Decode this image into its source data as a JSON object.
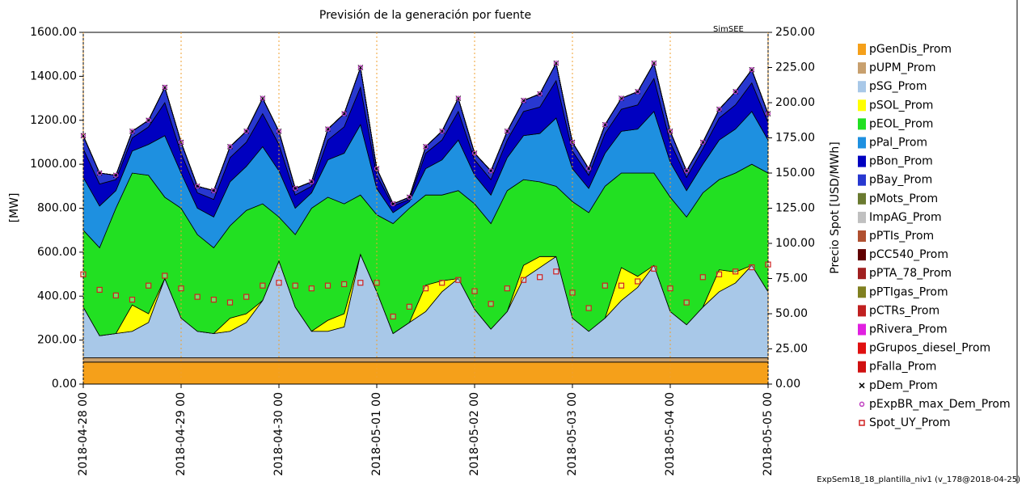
{
  "chart_data": {
    "type": "stacked-area",
    "title": "Previsión de la generación por fuente",
    "ylabel": "[MW]",
    "y2label": "Precio Spot [USD/MWh]",
    "logo": "SimSEE",
    "footnote": "ExpSem18_18_plantilla_niv1 (v_178@2018-04-25)",
    "grid": "x",
    "xlim": [
      0,
      168
    ],
    "ylim": [
      0,
      1600
    ],
    "y2lim": [
      0,
      250
    ],
    "x": [
      0,
      4,
      8,
      12,
      16,
      20,
      24,
      28,
      32,
      36,
      40,
      44,
      48,
      52,
      56,
      60,
      64,
      68,
      72,
      76,
      80,
      84,
      88,
      92,
      96,
      100,
      104,
      108,
      112,
      116,
      120,
      124,
      128,
      132,
      136,
      140,
      144,
      148,
      152,
      156,
      160,
      164,
      168
    ],
    "xticks": [
      {
        "value": 0,
        "label": "2018-04-28 00"
      },
      {
        "value": 24,
        "label": "2018-04-29 00"
      },
      {
        "value": 48,
        "label": "2018-04-30 00"
      },
      {
        "value": 72,
        "label": "2018-05-01 00"
      },
      {
        "value": 96,
        "label": "2018-05-02 00"
      },
      {
        "value": 120,
        "label": "2018-05-03 00"
      },
      {
        "value": 144,
        "label": "2018-05-04 00"
      },
      {
        "value": 168,
        "label": "2018-05-05 00"
      }
    ],
    "yticks": [
      {
        "value": 0,
        "label": "0.00"
      },
      {
        "value": 200,
        "label": "200.00"
      },
      {
        "value": 400,
        "label": "400.00"
      },
      {
        "value": 600,
        "label": "600.00"
      },
      {
        "value": 800,
        "label": "800.00"
      },
      {
        "value": 1000,
        "label": "1000.00"
      },
      {
        "value": 1200,
        "label": "1200.00"
      },
      {
        "value": 1400,
        "label": "1400.00"
      },
      {
        "value": 1600,
        "label": "1600.00"
      }
    ],
    "y2ticks": [
      {
        "value": 0,
        "label": "0.00"
      },
      {
        "value": 25,
        "label": "25.00"
      },
      {
        "value": 50,
        "label": "50.00"
      },
      {
        "value": 75,
        "label": "75.00"
      },
      {
        "value": 100,
        "label": "100.00"
      },
      {
        "value": 125,
        "label": "125.00"
      },
      {
        "value": 150,
        "label": "150.00"
      },
      {
        "value": 175,
        "label": "175.00"
      },
      {
        "value": 200,
        "label": "200.00"
      },
      {
        "value": 225,
        "label": "225.00"
      },
      {
        "value": 250,
        "label": "250.00"
      }
    ],
    "series": [
      {
        "name": "pGenDis_Prom",
        "color": "#f5a01a",
        "mark": "area",
        "values": [
          100,
          100,
          100,
          100,
          100,
          100,
          100,
          100,
          100,
          100,
          100,
          100,
          100,
          100,
          100,
          100,
          100,
          100,
          100,
          100,
          100,
          100,
          100,
          100,
          100,
          100,
          100,
          100,
          100,
          100,
          100,
          100,
          100,
          100,
          100,
          100,
          100,
          100,
          100,
          100,
          100,
          100,
          100
        ]
      },
      {
        "name": "pUPM_Prom",
        "color": "#c8a06e",
        "mark": "area",
        "values": [
          20,
          20,
          20,
          20,
          20,
          20,
          20,
          20,
          20,
          20,
          20,
          20,
          20,
          20,
          20,
          20,
          20,
          20,
          20,
          20,
          20,
          20,
          20,
          20,
          20,
          20,
          20,
          20,
          20,
          20,
          20,
          20,
          20,
          20,
          20,
          20,
          20,
          20,
          20,
          20,
          20,
          20,
          20
        ]
      },
      {
        "name": "pSG_Prom",
        "color": "#a8c8e8",
        "mark": "area",
        "values": [
          230,
          100,
          110,
          120,
          160,
          360,
          180,
          120,
          110,
          120,
          160,
          260,
          440,
          230,
          120,
          120,
          140,
          470,
          300,
          110,
          160,
          210,
          300,
          360,
          220,
          130,
          210,
          360,
          410,
          460,
          180,
          120,
          180,
          260,
          320,
          420,
          210,
          150,
          230,
          300,
          340,
          420,
          300
        ]
      },
      {
        "name": "pSOL_Prom",
        "color": "#ffff00",
        "mark": "area",
        "values": [
          0,
          0,
          0,
          120,
          40,
          0,
          0,
          0,
          0,
          60,
          40,
          0,
          0,
          0,
          0,
          50,
          60,
          0,
          0,
          0,
          0,
          120,
          50,
          0,
          0,
          0,
          0,
          60,
          50,
          0,
          0,
          0,
          0,
          150,
          50,
          0,
          0,
          0,
          0,
          100,
          50,
          0,
          0
        ]
      },
      {
        "name": "pEOL_Prom",
        "color": "#22e022",
        "mark": "area",
        "values": [
          350,
          400,
          570,
          600,
          630,
          370,
          500,
          440,
          390,
          420,
          470,
          440,
          200,
          330,
          560,
          560,
          500,
          270,
          350,
          500,
          520,
          410,
          390,
          400,
          480,
          480,
          550,
          390,
          340,
          320,
          530,
          540,
          600,
          430,
          470,
          420,
          520,
          490,
          520,
          410,
          450,
          460,
          540
        ]
      },
      {
        "name": "pPal_Prom",
        "color": "#1e90e0",
        "mark": "area",
        "values": [
          240,
          190,
          80,
          100,
          140,
          280,
          160,
          120,
          140,
          200,
          200,
          260,
          210,
          120,
          70,
          170,
          230,
          320,
          120,
          50,
          30,
          120,
          160,
          230,
          130,
          130,
          150,
          200,
          220,
          310,
          150,
          110,
          150,
          190,
          200,
          280,
          160,
          120,
          130,
          180,
          200,
          240,
          150
        ]
      },
      {
        "name": "pBon_Prom",
        "color": "#0000c0",
        "mark": "area",
        "values": [
          130,
          100,
          50,
          60,
          80,
          150,
          90,
          70,
          80,
          110,
          110,
          150,
          120,
          60,
          30,
          90,
          120,
          170,
          60,
          30,
          10,
          70,
          90,
          130,
          70,
          70,
          80,
          110,
          120,
          170,
          80,
          60,
          90,
          100,
          110,
          150,
          90,
          60,
          70,
          100,
          110,
          130,
          80
        ]
      },
      {
        "name": "pBay_Prom",
        "color": "#2838d0",
        "mark": "area",
        "values": [
          60,
          50,
          20,
          30,
          30,
          70,
          50,
          30,
          40,
          50,
          50,
          70,
          60,
          30,
          20,
          50,
          60,
          90,
          30,
          10,
          10,
          30,
          40,
          60,
          30,
          40,
          40,
          50,
          60,
          80,
          40,
          30,
          40,
          50,
          60,
          70,
          50,
          30,
          30,
          40,
          60,
          60,
          40
        ]
      },
      {
        "name": "pMots_Prom",
        "color": "#6a7a30",
        "mark": "area",
        "values": [
          0,
          0,
          0,
          0,
          0,
          0,
          0,
          0,
          0,
          0,
          0,
          0,
          0,
          0,
          0,
          0,
          0,
          0,
          0,
          0,
          0,
          0,
          0,
          0,
          0,
          0,
          0,
          0,
          0,
          0,
          0,
          0,
          0,
          0,
          0,
          0,
          0,
          0,
          0,
          0,
          0,
          0,
          0
        ]
      },
      {
        "name": "ImpAG_Prom",
        "color": "#c0c0c0",
        "mark": "area",
        "values": [
          0,
          0,
          0,
          0,
          0,
          0,
          0,
          0,
          0,
          0,
          0,
          0,
          0,
          0,
          0,
          0,
          0,
          0,
          0,
          0,
          0,
          0,
          0,
          0,
          0,
          0,
          0,
          0,
          0,
          0,
          0,
          0,
          0,
          0,
          0,
          0,
          0,
          0,
          0,
          0,
          0,
          0,
          0
        ]
      },
      {
        "name": "pPTIs_Prom",
        "color": "#b05030",
        "mark": "area",
        "values": [
          0,
          0,
          0,
          0,
          0,
          0,
          0,
          0,
          0,
          0,
          0,
          0,
          0,
          0,
          0,
          0,
          0,
          0,
          0,
          0,
          0,
          0,
          0,
          0,
          0,
          0,
          0,
          0,
          0,
          0,
          0,
          0,
          0,
          0,
          0,
          0,
          0,
          0,
          0,
          0,
          0,
          0,
          0
        ]
      },
      {
        "name": "pCC540_Prom",
        "color": "#600000",
        "mark": "area",
        "values": [
          0,
          0,
          0,
          0,
          0,
          0,
          0,
          0,
          0,
          0,
          0,
          0,
          0,
          0,
          0,
          0,
          0,
          0,
          0,
          0,
          0,
          0,
          0,
          0,
          0,
          0,
          0,
          0,
          0,
          0,
          0,
          0,
          0,
          0,
          0,
          0,
          0,
          0,
          0,
          0,
          0,
          0,
          0
        ]
      },
      {
        "name": "pPTA_78_Prom",
        "color": "#a02020",
        "mark": "area",
        "values": [
          0,
          0,
          0,
          0,
          0,
          0,
          0,
          0,
          0,
          0,
          0,
          0,
          0,
          0,
          0,
          0,
          0,
          0,
          0,
          0,
          0,
          0,
          0,
          0,
          0,
          0,
          0,
          0,
          0,
          0,
          0,
          0,
          0,
          0,
          0,
          0,
          0,
          0,
          0,
          0,
          0,
          0,
          0
        ]
      },
      {
        "name": "pPTIgas_Prom",
        "color": "#808020",
        "mark": "area",
        "values": [
          0,
          0,
          0,
          0,
          0,
          0,
          0,
          0,
          0,
          0,
          0,
          0,
          0,
          0,
          0,
          0,
          0,
          0,
          0,
          0,
          0,
          0,
          0,
          0,
          0,
          0,
          0,
          0,
          0,
          0,
          0,
          0,
          0,
          0,
          0,
          0,
          0,
          0,
          0,
          0,
          0,
          0,
          0
        ]
      },
      {
        "name": "pCTRs_Prom",
        "color": "#c02020",
        "mark": "area",
        "values": [
          0,
          0,
          0,
          0,
          0,
          0,
          0,
          0,
          0,
          0,
          0,
          0,
          0,
          0,
          0,
          0,
          0,
          0,
          0,
          0,
          0,
          0,
          0,
          0,
          0,
          0,
          0,
          0,
          0,
          0,
          0,
          0,
          0,
          0,
          0,
          0,
          0,
          0,
          0,
          0,
          0,
          0,
          0
        ]
      },
      {
        "name": "pRivera_Prom",
        "color": "#e020e0",
        "mark": "area",
        "values": [
          0,
          0,
          0,
          0,
          0,
          0,
          0,
          0,
          0,
          0,
          0,
          0,
          0,
          0,
          0,
          0,
          0,
          0,
          0,
          0,
          0,
          0,
          0,
          0,
          0,
          0,
          0,
          0,
          0,
          0,
          0,
          0,
          0,
          0,
          0,
          0,
          0,
          0,
          0,
          0,
          0,
          0,
          0
        ]
      },
      {
        "name": "pGrupos_diesel_Prom",
        "color": "#e01010",
        "mark": "area",
        "values": [
          0,
          0,
          0,
          0,
          0,
          0,
          0,
          0,
          0,
          0,
          0,
          0,
          0,
          0,
          0,
          0,
          0,
          0,
          0,
          0,
          0,
          0,
          0,
          0,
          0,
          0,
          0,
          0,
          0,
          0,
          0,
          0,
          0,
          0,
          0,
          0,
          0,
          0,
          0,
          0,
          0,
          0,
          0
        ]
      },
      {
        "name": "pFalla_Prom",
        "color": "#d01010",
        "mark": "area",
        "values": [
          0,
          0,
          0,
          0,
          0,
          0,
          0,
          0,
          0,
          0,
          0,
          0,
          0,
          0,
          0,
          0,
          0,
          0,
          0,
          0,
          0,
          0,
          0,
          0,
          0,
          0,
          0,
          0,
          0,
          0,
          0,
          0,
          0,
          0,
          0,
          0,
          0,
          0,
          0,
          0,
          0,
          0,
          0
        ]
      },
      {
        "name": "pDem_Prom",
        "color": "#000000",
        "mark": "x",
        "values": [
          1130,
          960,
          950,
          1150,
          1200,
          1350,
          1100,
          900,
          880,
          1080,
          1150,
          1300,
          1150,
          890,
          920,
          1160,
          1230,
          1440,
          980,
          820,
          850,
          1080,
          1150,
          1300,
          1050,
          970,
          1150,
          1290,
          1320,
          1460,
          1100,
          980,
          1180,
          1300,
          1330,
          1460,
          1150,
          970,
          1100,
          1250,
          1330,
          1430,
          1230
        ]
      },
      {
        "name": "pExpBR_max_Dem_Prom",
        "color": "#c040c0",
        "mark": "circle",
        "values": [
          1130,
          960,
          950,
          1150,
          1200,
          1350,
          1100,
          900,
          880,
          1080,
          1150,
          1300,
          1150,
          890,
          920,
          1160,
          1230,
          1440,
          980,
          820,
          850,
          1080,
          1150,
          1300,
          1050,
          970,
          1150,
          1290,
          1320,
          1460,
          1100,
          980,
          1180,
          1300,
          1330,
          1460,
          1150,
          970,
          1100,
          1250,
          1330,
          1430,
          1230
        ]
      },
      {
        "name": "Spot_UY_Prom",
        "color": "#d02020",
        "mark": "square",
        "axis": "y2",
        "values": [
          78,
          67,
          63,
          60,
          70,
          77,
          68,
          62,
          60,
          58,
          62,
          70,
          72,
          70,
          68,
          70,
          71,
          72,
          72,
          48,
          55,
          68,
          72,
          74,
          66,
          57,
          68,
          74,
          76,
          80,
          65,
          54,
          70,
          70,
          73,
          82,
          68,
          58,
          76,
          78,
          80,
          83,
          85
        ]
      }
    ]
  }
}
